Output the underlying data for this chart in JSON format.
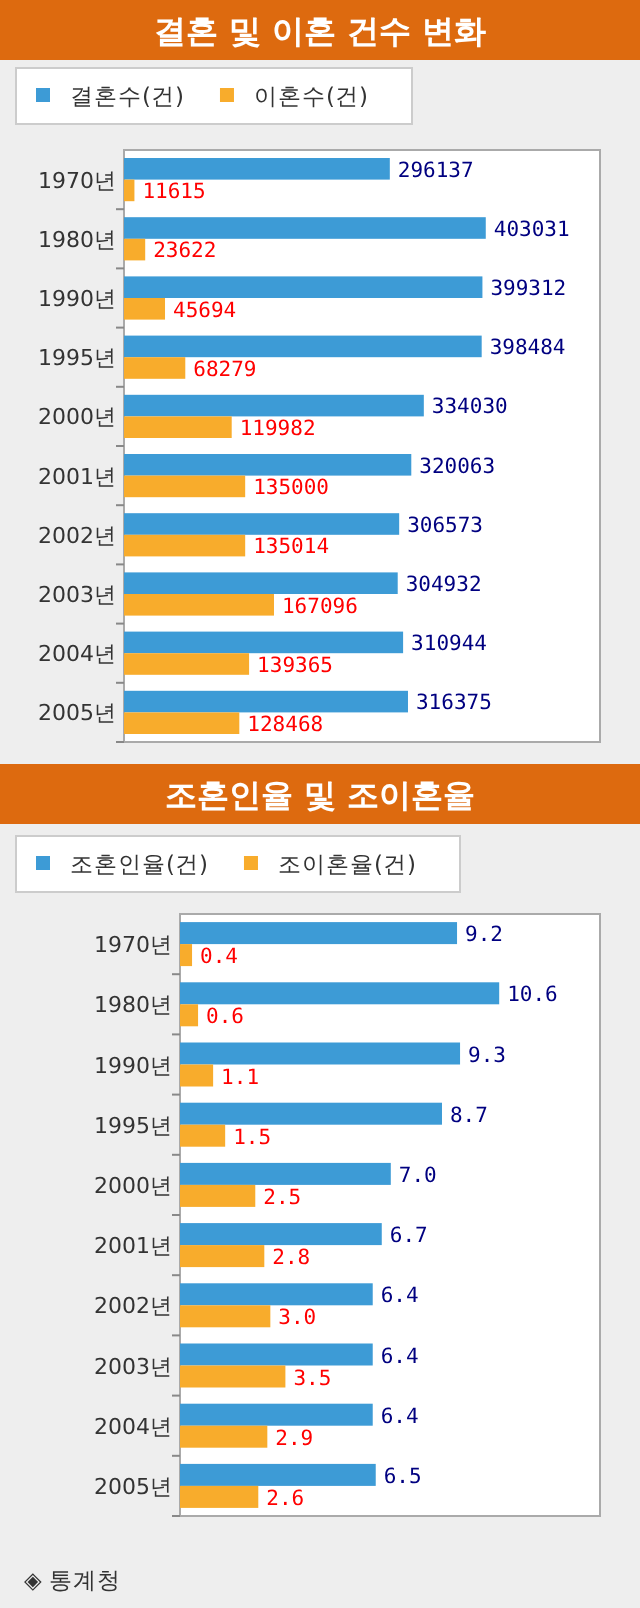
{
  "chart_data": [
    {
      "type": "bar",
      "orientation": "horizontal",
      "title": "결혼 및 이혼 건수 변화",
      "categories": [
        "1970년",
        "1980년",
        "1990년",
        "1995년",
        "2000년",
        "2001년",
        "2002년",
        "2003년",
        "2004년",
        "2005년"
      ],
      "series": [
        {
          "name": "결혼수(건)",
          "color": "#3d9bd6",
          "values": [
            296137,
            403031,
            399312,
            398484,
            334030,
            320063,
            306573,
            304932,
            310944,
            316375
          ]
        },
        {
          "name": "이혼수(건)",
          "color": "#f8ac2c",
          "values": [
            11615,
            23622,
            45694,
            68279,
            119982,
            135000,
            135014,
            167096,
            139365,
            128468
          ]
        }
      ],
      "data_labels": true,
      "legend": "top left"
    },
    {
      "type": "bar",
      "orientation": "horizontal",
      "title": "조혼인율 및 조이혼율",
      "categories": [
        "1970년",
        "1980년",
        "1990년",
        "1995년",
        "2000년",
        "2001년",
        "2002년",
        "2003년",
        "2004년",
        "2005년"
      ],
      "series": [
        {
          "name": "조혼인율(건)",
          "color": "#3d9bd6",
          "values": [
            9.2,
            10.6,
            9.3,
            8.7,
            7.0,
            6.7,
            6.4,
            6.4,
            6.4,
            6.5
          ],
          "value_labels": [
            "9.2",
            "10.6",
            "9.3",
            "8.7",
            "7.0",
            "6.7",
            "6.4",
            "6.4",
            "6.4",
            "6.5"
          ]
        },
        {
          "name": "조이혼율(건)",
          "color": "#f8ac2c",
          "values": [
            0.4,
            0.6,
            1.1,
            1.5,
            2.5,
            2.8,
            3.0,
            3.5,
            2.9,
            2.6
          ],
          "value_labels": [
            "0.4",
            "0.6",
            "1.1",
            "1.5",
            "2.5",
            "2.8",
            "3.0",
            "3.5",
            "2.9",
            "2.6"
          ]
        }
      ],
      "legend": "top left",
      "annotations": [
        "◈ 통계청"
      ]
    }
  ]
}
